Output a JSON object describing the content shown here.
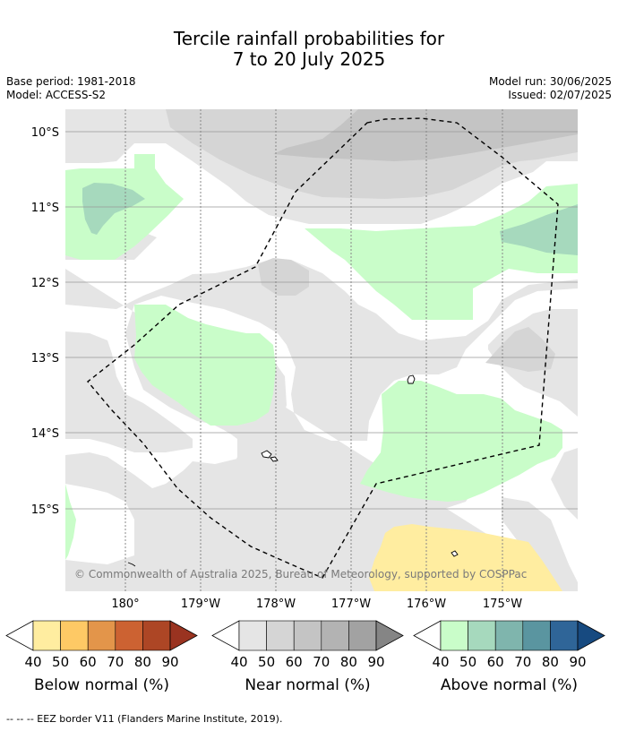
{
  "title": {
    "line1": "Tercile rainfall probabilities for",
    "line2": "7 to 20 July 2025"
  },
  "meta_left": {
    "base_period": "Base period: 1981-2018",
    "model": "Model: ACCESS-S2"
  },
  "meta_right": {
    "model_run": "Model run: 30/06/2025",
    "issued": "Issued: 02/07/2025"
  },
  "map": {
    "lat_labels": [
      "10°S",
      "11°S",
      "12°S",
      "13°S",
      "14°S",
      "15°S"
    ],
    "lon_labels": [
      "180°",
      "179°W",
      "178°W",
      "177°W",
      "176°W",
      "175°W"
    ],
    "copyright": "© Commonwealth of Australia 2025, Bureau of Meteorology, supported by COSPPac",
    "categories": {
      "below_normal": "Below normal",
      "near_normal": "Near normal",
      "above_normal": "Above normal"
    }
  },
  "colorbars": [
    {
      "label": "Below normal (%)",
      "ticks": [
        "40",
        "50",
        "60",
        "70",
        "80",
        "90"
      ],
      "colors": [
        "#ffeda0",
        "#fec965",
        "#e3954a",
        "#cc6232",
        "#ad4625",
        "#9a3320"
      ]
    },
    {
      "label": "Near normal (%)",
      "ticks": [
        "40",
        "50",
        "60",
        "70",
        "80",
        "90"
      ],
      "colors": [
        "#e5e5e5",
        "#d5d5d5",
        "#c4c4c4",
        "#b3b3b3",
        "#a2a2a2",
        "#858585"
      ]
    },
    {
      "label": "Above normal (%)",
      "ticks": [
        "40",
        "50",
        "60",
        "70",
        "80",
        "90"
      ],
      "colors": [
        "#c9fdc9",
        "#a6d9bd",
        "#7fb5ad",
        "#5a95a0",
        "#2f6598",
        "#174a80"
      ]
    }
  ],
  "footer": "--  --  -- EEZ border V11 (Flanders Marine Institute, 2019)."
}
